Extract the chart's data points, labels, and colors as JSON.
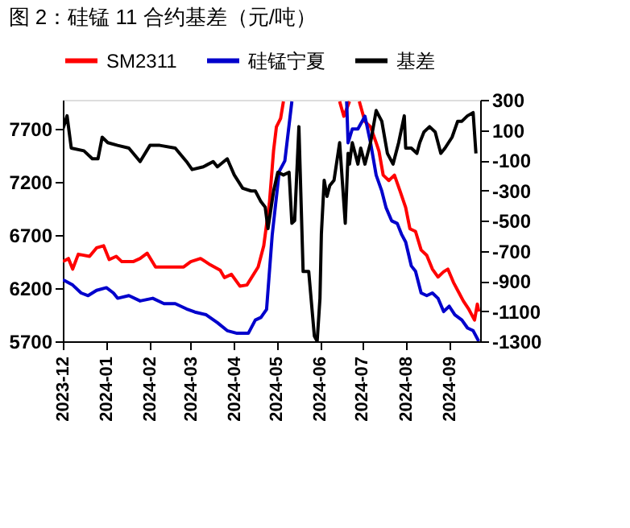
{
  "chart_data": {
    "type": "line",
    "title": "图 2：硅锰 11 合约基差（元/吨）",
    "xlim": [
      "2023-12-01",
      "2024-09-23"
    ],
    "xticks": [
      {
        "value": "2023-12-01",
        "label": "2023-12"
      },
      {
        "value": "2024-01-01",
        "label": "2024-01"
      },
      {
        "value": "2024-02-01",
        "label": "2024-02"
      },
      {
        "value": "2024-03-01",
        "label": "2024-03"
      },
      {
        "value": "2024-04-01",
        "label": "2024-04"
      },
      {
        "value": "2024-05-01",
        "label": "2024-05"
      },
      {
        "value": "2024-06-01",
        "label": "2024-06"
      },
      {
        "value": "2024-07-01",
        "label": "2024-07"
      },
      {
        "value": "2024-08-01",
        "label": "2024-08"
      },
      {
        "value": "2024-09-01",
        "label": "2024-09"
      }
    ],
    "ylim": [
      5700,
      7975
    ],
    "yticks": [
      5700,
      6200,
      6700,
      7200,
      7700
    ],
    "y2lim": [
      -1300,
      300
    ],
    "y2ticks": [
      -1300,
      -1100,
      -900,
      -700,
      -500,
      -300,
      -100,
      100,
      300
    ],
    "grid": false,
    "legend": "top",
    "line_style": "solid",
    "marker": "none",
    "series": [
      {
        "name": "SM2311",
        "color": "#ff0000",
        "x": [
          "2023-12-01",
          "2023-12-05",
          "2023-12-08",
          "2023-12-12",
          "2023-12-20",
          "2023-12-25",
          "2023-12-30",
          "2024-01-03",
          "2024-01-08",
          "2024-01-12",
          "2024-01-20",
          "2024-01-25",
          "2024-01-30",
          "2024-02-05",
          "2024-02-15",
          "2024-02-25",
          "2024-03-01",
          "2024-03-08",
          "2024-03-15",
          "2024-03-22",
          "2024-03-25",
          "2024-03-30",
          "2024-04-05",
          "2024-04-10",
          "2024-04-18",
          "2024-04-22",
          "2024-04-26",
          "2024-04-29",
          "2024-05-01",
          "2024-05-04",
          "2024-05-06",
          "2024-05-08",
          "2024-06-14",
          "2024-06-15",
          "2024-06-18",
          "2024-06-22",
          "2024-06-26",
          "2024-06-29",
          "2024-07-03",
          "2024-07-07",
          "2024-07-11",
          "2024-07-13",
          "2024-07-16",
          "2024-07-20",
          "2024-07-24",
          "2024-07-28",
          "2024-08-01",
          "2024-08-04",
          "2024-08-08",
          "2024-08-12",
          "2024-08-16",
          "2024-08-20",
          "2024-08-24",
          "2024-08-28",
          "2024-08-31",
          "2024-09-04",
          "2024-09-08",
          "2024-09-11",
          "2024-09-15",
          "2024-09-19",
          "2024-09-21",
          "2024-09-22"
        ],
        "values": [
          6450,
          6480,
          6380,
          6520,
          6500,
          6580,
          6600,
          6470,
          6500,
          6450,
          6450,
          6480,
          6530,
          6400,
          6400,
          6400,
          6450,
          6480,
          6420,
          6370,
          6300,
          6330,
          6220,
          6230,
          6400,
          6600,
          7000,
          7500,
          7720,
          7800,
          7960,
          null,
          null,
          7960,
          7820,
          7960,
          null,
          7960,
          7770,
          7720,
          7570,
          7490,
          7265,
          7215,
          7265,
          7115,
          6960,
          6760,
          6735,
          6560,
          6510,
          6380,
          6305,
          6355,
          6380,
          6255,
          6155,
          6080,
          6000,
          5900,
          6050,
          5980
        ]
      },
      {
        "name": "硅锰宁夏",
        "color": "#0000cc",
        "x": [
          "2023-12-01",
          "2023-12-08",
          "2023-12-14",
          "2023-12-19",
          "2023-12-25",
          "2024-01-01",
          "2024-01-06",
          "2024-01-09",
          "2024-01-17",
          "2024-01-25",
          "2024-02-03",
          "2024-02-11",
          "2024-02-19",
          "2024-02-27",
          "2024-03-04",
          "2024-03-12",
          "2024-03-20",
          "2024-03-27",
          "2024-04-03",
          "2024-04-11",
          "2024-04-16",
          "2024-04-20",
          "2024-04-24",
          "2024-04-28",
          "2024-05-03",
          "2024-05-07",
          "2024-05-12",
          "2024-05-13",
          "2024-06-19",
          "2024-06-20",
          "2024-06-21",
          "2024-06-24",
          "2024-06-28",
          "2024-07-03",
          "2024-07-07",
          "2024-07-11",
          "2024-07-15",
          "2024-07-18",
          "2024-07-22",
          "2024-07-26",
          "2024-07-29",
          "2024-08-01",
          "2024-08-05",
          "2024-08-08",
          "2024-08-12",
          "2024-08-16",
          "2024-08-20",
          "2024-08-24",
          "2024-08-28",
          "2024-09-01",
          "2024-09-05",
          "2024-09-10",
          "2024-09-14",
          "2024-09-18",
          "2024-09-22"
        ],
        "values": [
          6280,
          6230,
          6155,
          6130,
          6180,
          6205,
          6155,
          6105,
          6130,
          6080,
          6105,
          6055,
          6055,
          6005,
          5975,
          5950,
          5875,
          5800,
          5775,
          5775,
          5900,
          5925,
          6000,
          6700,
          7300,
          7400,
          7960,
          null,
          null,
          7960,
          7570,
          7700,
          7700,
          7820,
          7570,
          7265,
          7115,
          6960,
          6835,
          6810,
          6710,
          6635,
          6410,
          6360,
          6155,
          6130,
          6155,
          6105,
          5980,
          6030,
          5950,
          5900,
          5825,
          5800,
          5700
        ]
      },
      {
        "name": "基差",
        "color": "#000000",
        "axis": "y2",
        "x": [
          "2023-12-01",
          "2023-12-04",
          "2023-12-07",
          "2023-12-16",
          "2023-12-22",
          "2023-12-26",
          "2023-12-29",
          "2024-01-02",
          "2024-01-09",
          "2024-01-17",
          "2024-01-25",
          "2024-02-01",
          "2024-02-08",
          "2024-02-19",
          "2024-02-27",
          "2024-03-02",
          "2024-03-10",
          "2024-03-17",
          "2024-03-20",
          "2024-03-27",
          "2024-04-01",
          "2024-04-07",
          "2024-04-13",
          "2024-04-16",
          "2024-04-20",
          "2024-04-23",
          "2024-04-25",
          "2024-04-29",
          "2024-05-02",
          "2024-05-06",
          "2024-05-10",
          "2024-05-12",
          "2024-05-14",
          "2024-05-17",
          "2024-05-20",
          "2024-05-24",
          "2024-05-28",
          "2024-05-30",
          "2024-06-01",
          "2024-06-02",
          "2024-06-04",
          "2024-06-06",
          "2024-06-08",
          "2024-06-11",
          "2024-06-15",
          "2024-06-19",
          "2024-06-21",
          "2024-06-22",
          "2024-06-24",
          "2024-06-28",
          "2024-06-30",
          "2024-07-03",
          "2024-07-07",
          "2024-07-11",
          "2024-07-15",
          "2024-07-19",
          "2024-07-23",
          "2024-07-27",
          "2024-07-31",
          "2024-08-01",
          "2024-08-05",
          "2024-08-09",
          "2024-08-11",
          "2024-08-14",
          "2024-08-18",
          "2024-08-22",
          "2024-08-26",
          "2024-08-29",
          "2024-09-03",
          "2024-09-07",
          "2024-09-10",
          "2024-09-14",
          "2024-09-18",
          "2024-09-20"
        ],
        "values": [
          105,
          194,
          -20,
          -38,
          -91,
          -91,
          52,
          16,
          -2,
          -20,
          -109,
          -2,
          -2,
          -20,
          -109,
          -162,
          -144,
          -109,
          -144,
          -91,
          -198,
          -286,
          -304,
          -304,
          -375,
          -411,
          -553,
          -304,
          -180,
          -198,
          -180,
          -518,
          -500,
          122,
          -838,
          -838,
          -1265,
          -1300,
          -1015,
          -589,
          -233,
          -340,
          -268,
          -233,
          16,
          -518,
          -55,
          -126,
          16,
          -126,
          -20,
          -126,
          16,
          229,
          158,
          -55,
          -126,
          16,
          194,
          -20,
          -20,
          -55,
          16,
          87,
          122,
          87,
          -55,
          -20,
          52,
          158,
          158,
          194,
          215,
          -55
        ]
      }
    ]
  }
}
